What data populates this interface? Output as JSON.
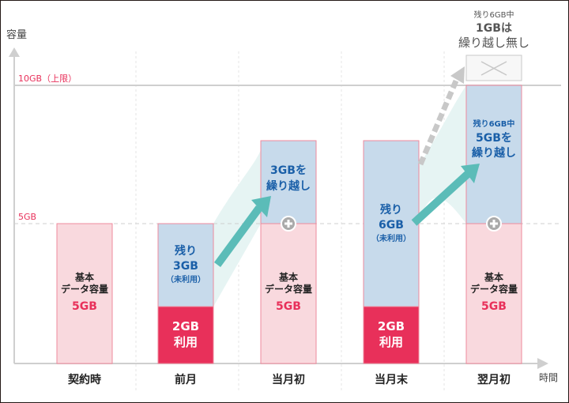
{
  "axis": {
    "y_label": "容量",
    "x_label": "時間",
    "cap_label": "10GB（上限）",
    "mid_label": "5GB"
  },
  "colors": {
    "pink": "#f9d9de",
    "pink_border": "#ee8a9c",
    "red": "#e8305a",
    "blue": "#c7daeb",
    "blue_text": "#1a5fa8",
    "teal": "#5bbcb8",
    "gray": "#c8c8c8",
    "red_text": "#e8305a"
  },
  "columns": [
    {
      "label": "契約時",
      "base_text": [
        "基本",
        "データ容量"
      ],
      "base_amount": "5GB"
    },
    {
      "label": "前月",
      "remain_text": [
        "残り",
        "3GB",
        "（未利用）"
      ],
      "used_text": [
        "2GB",
        "利用"
      ]
    },
    {
      "label": "当月初",
      "carry_text": [
        "3GBを",
        "繰り越し"
      ],
      "base_text": [
        "基本",
        "データ容量"
      ],
      "base_amount": "5GB"
    },
    {
      "label": "当月末",
      "remain_text": [
        "残り",
        "6GB",
        "（未利用）"
      ],
      "used_text": [
        "2GB",
        "利用"
      ]
    },
    {
      "label": "翌月初",
      "carry_text": [
        "残り6GB中",
        "5GBを",
        "繰り越し"
      ],
      "base_text": [
        "基本",
        "データ容量"
      ],
      "base_amount": "5GB"
    }
  ],
  "note": {
    "line1": "残り6GB中",
    "line2": "1GBは",
    "line3": "繰り越し無し"
  }
}
